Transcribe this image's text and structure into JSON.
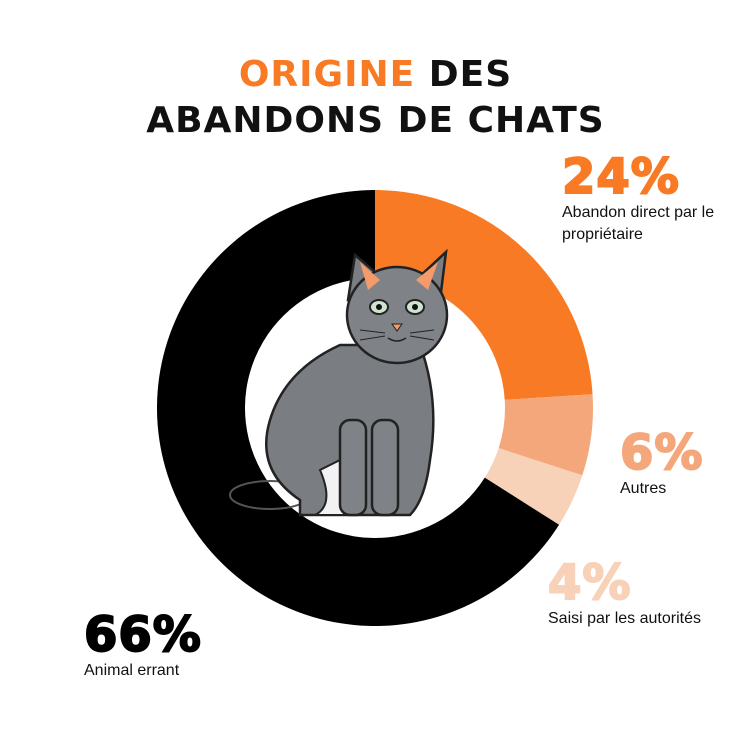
{
  "chart_data": {
    "type": "donut",
    "title": [
      "ORIGINE",
      "DES",
      "ABANDONS DE CHATS"
    ],
    "title_color": "#f97a24",
    "categories": [
      "Abandon direct par le propriétaire",
      "Autres",
      "Saisi par les autorités",
      "Animal errant"
    ],
    "values": [
      24,
      6,
      4,
      66
    ],
    "value_labels": [
      "24%",
      "6%",
      "4%",
      "66%"
    ],
    "colors": [
      "#f97a24",
      "#f4a77a",
      "#f8d2b8",
      "#000000"
    ]
  }
}
